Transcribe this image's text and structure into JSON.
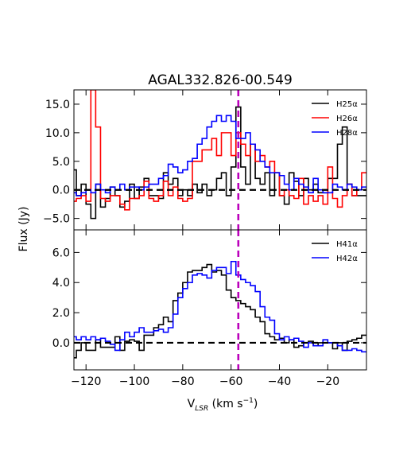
{
  "chart_data": {
    "title": "AGAL332.826-00.549",
    "xlabel": "V",
    "xlabel_sub": "LSR",
    "xlabel_units": " (km s",
    "xlabel_exp": "−1",
    "xlabel_close": ")",
    "ylabel": "Flux (Jy)",
    "xlim": [
      -125,
      -4
    ],
    "xticks": [
      -120,
      -100,
      -80,
      -60,
      -40,
      -20
    ],
    "xtick_labels": [
      "−120",
      "−100",
      "−80",
      "−60",
      "−40",
      "−20"
    ],
    "vline_x": -57,
    "vline_color": "#bb00bb",
    "zero_line_color": "#000000",
    "panels": [
      {
        "type": "line",
        "step": true,
        "ylim": [
          -7,
          17.5
        ],
        "yticks": [
          15,
          10,
          5,
          0,
          -5
        ],
        "ytick_labels": [
          "15.0",
          "10.0",
          "5.0",
          "0.0",
          "−5.0"
        ],
        "series": [
          {
            "name": "H25α",
            "color": "#000000",
            "x": [
              -125,
              -123,
              -121,
              -119,
              -117,
              -115,
              -113,
              -111,
              -109,
              -107,
              -105,
              -103,
              -101,
              -99,
              -97,
              -95,
              -93,
              -91,
              -89,
              -87,
              -85,
              -83,
              -81,
              -79,
              -77,
              -75,
              -73,
              -71,
              -69,
              -67,
              -65,
              -63,
              -61,
              -59,
              -57,
              -55,
              -53,
              -51,
              -49,
              -47,
              -45,
              -43,
              -41,
              -39,
              -37,
              -35,
              -33,
              -31,
              -29,
              -27,
              -25,
              -23,
              -21,
              -19,
              -17,
              -15,
              -13,
              -11,
              -9,
              -7,
              -5
            ],
            "y": [
              3.5,
              -1,
              1,
              -2.5,
              -5,
              1,
              -3,
              -1.5,
              0.5,
              -1,
              -3,
              -2,
              1,
              -1.5,
              0.5,
              2,
              -1,
              -1,
              -1.5,
              3,
              1,
              2,
              -1,
              0,
              -1,
              1,
              -0.5,
              1,
              -1,
              0,
              2,
              3,
              -1,
              4,
              14.5,
              4,
              1,
              8,
              2,
              1,
              3,
              -1,
              3,
              -1,
              -2.5,
              3,
              1.5,
              -1,
              2,
              0,
              1,
              -0.5,
              -0.5,
              2,
              2,
              8,
              11,
              1,
              -1,
              -1,
              -1
            ]
          },
          {
            "name": "H26α",
            "color": "#ff0000",
            "x": [
              -125,
              -123,
              -121,
              -119,
              -117,
              -115,
              -113,
              -111,
              -109,
              -107,
              -105,
              -103,
              -101,
              -99,
              -97,
              -95,
              -93,
              -91,
              -89,
              -87,
              -85,
              -83,
              -81,
              -79,
              -77,
              -75,
              -73,
              -71,
              -69,
              -67,
              -65,
              -63,
              -61,
              -59,
              -57,
              -55,
              -53,
              -51,
              -49,
              -47,
              -45,
              -43,
              -41,
              -39,
              -37,
              -35,
              -33,
              -31,
              -29,
              -27,
              -25,
              -23,
              -21,
              -19,
              -17,
              -15,
              -13,
              -11,
              -9,
              -7,
              -5
            ],
            "y": [
              -2,
              -1.5,
              -1,
              -2,
              17.5,
              11,
              -1.5,
              -2,
              -1,
              -1,
              -2.5,
              -3.5,
              -1.5,
              -1.5,
              -1,
              1.5,
              -1.5,
              -2,
              -1,
              1.5,
              -1,
              0.5,
              -1.5,
              -2,
              -1.5,
              5,
              5,
              7,
              7,
              9,
              6,
              10,
              10,
              6,
              10,
              8,
              6,
              8,
              5,
              6,
              4,
              5,
              3,
              -1,
              0,
              -1,
              -1.5,
              2,
              -2.5,
              -1,
              -2,
              -1,
              -2.5,
              4,
              -1.5,
              -3,
              -1,
              1,
              -1,
              0,
              3
            ]
          },
          {
            "name": "H28α",
            "color": "#0000ff",
            "x": [
              -125,
              -123,
              -121,
              -119,
              -117,
              -115,
              -113,
              -111,
              -109,
              -107,
              -105,
              -103,
              -101,
              -99,
              -97,
              -95,
              -93,
              -91,
              -89,
              -87,
              -85,
              -83,
              -81,
              -79,
              -77,
              -75,
              -73,
              -71,
              -69,
              -67,
              -65,
              -63,
              -61,
              -59,
              -57,
              -55,
              -53,
              -51,
              -49,
              -47,
              -45,
              -43,
              -41,
              -39,
              -37,
              -35,
              -33,
              -31,
              -29,
              -27,
              -25,
              -23,
              -21,
              -19,
              -17,
              -15,
              -13,
              -11,
              -9,
              -7,
              -5
            ],
            "y": [
              -0.5,
              -1,
              -0.5,
              0,
              -0.5,
              1,
              0,
              -0.5,
              0.5,
              0,
              1,
              0,
              0.5,
              0.5,
              0,
              0.5,
              1,
              1,
              2,
              2.5,
              4.5,
              4,
              3,
              3.5,
              5,
              5.5,
              8,
              9,
              11,
              12,
              13,
              12,
              13,
              12,
              9,
              9,
              10,
              8,
              7,
              5,
              4,
              3,
              3,
              2.5,
              1,
              0,
              2,
              1,
              0.5,
              -0.5,
              2,
              0,
              -0.5,
              -0.5,
              1,
              0.5,
              0,
              1,
              0.5,
              0,
              0.5
            ]
          }
        ]
      },
      {
        "type": "line",
        "step": true,
        "ylim": [
          -1.8,
          7.5
        ],
        "yticks": [
          6,
          4,
          2,
          0
        ],
        "ytick_labels": [
          "6.0",
          "4.0",
          "2.0",
          "0.0"
        ],
        "series": [
          {
            "name": "H41α",
            "color": "#000000",
            "x": [
              -125,
              -123,
              -121,
              -119,
              -117,
              -115,
              -113,
              -111,
              -109,
              -107,
              -105,
              -103,
              -101,
              -99,
              -97,
              -95,
              -93,
              -91,
              -89,
              -87,
              -85,
              -83,
              -81,
              -79,
              -77,
              -75,
              -73,
              -71,
              -69,
              -67,
              -65,
              -63,
              -61,
              -59,
              -57,
              -55,
              -53,
              -51,
              -49,
              -47,
              -45,
              -43,
              -41,
              -39,
              -37,
              -35,
              -33,
              -31,
              -29,
              -27,
              -25,
              -23,
              -21,
              -19,
              -17,
              -15,
              -13,
              -11,
              -9,
              -7,
              -5
            ],
            "y": [
              -1,
              -0.5,
              0,
              -0.5,
              -0.5,
              0.2,
              -0.3,
              -0.3,
              -0.3,
              0.4,
              -0.5,
              0.1,
              0.2,
              0.1,
              -0.5,
              0.5,
              0.5,
              1,
              1.2,
              1.7,
              1.4,
              2.8,
              3.3,
              4,
              4.7,
              4.8,
              4.8,
              5,
              5.2,
              4.7,
              4.8,
              4.5,
              3.5,
              3.0,
              2.8,
              2.6,
              2.4,
              2.2,
              1.7,
              1.4,
              0.6,
              0.4,
              0.2,
              0.3,
              0,
              0.2,
              -0.3,
              -0.2,
              0,
              0.1,
              -0.2,
              0,
              0,
              0,
              -0.4,
              0,
              -0.5,
              0.1,
              0.2,
              0.3,
              0.5
            ]
          },
          {
            "name": "H42α",
            "color": "#0000ff",
            "x": [
              -125,
              -123,
              -121,
              -119,
              -117,
              -115,
              -113,
              -111,
              -109,
              -107,
              -105,
              -103,
              -101,
              -99,
              -97,
              -95,
              -93,
              -91,
              -89,
              -87,
              -85,
              -83,
              -81,
              -79,
              -77,
              -75,
              -73,
              -71,
              -69,
              -67,
              -65,
              -63,
              -61,
              -59,
              -57,
              -55,
              -53,
              -51,
              -49,
              -47,
              -45,
              -43,
              -41,
              -39,
              -37,
              -35,
              -33,
              -31,
              -29,
              -27,
              -25,
              -23,
              -21,
              -19,
              -17,
              -15,
              -13,
              -11,
              -9,
              -7,
              -5
            ],
            "y": [
              0.4,
              0.2,
              0.4,
              0.2,
              0.4,
              0.2,
              0.3,
              0.1,
              -0.1,
              -0.5,
              0.2,
              0.7,
              0.4,
              0.7,
              1,
              0.7,
              0.7,
              0.8,
              0.9,
              0.7,
              1.0,
              1.9,
              3.0,
              3.6,
              4.0,
              4.5,
              4.6,
              4.5,
              4.3,
              4.8,
              5.0,
              5.0,
              4.6,
              5.4,
              4.5,
              4.2,
              4.0,
              3.8,
              3.4,
              2.4,
              1.7,
              1.5,
              0.6,
              0.2,
              0.4,
              0.2,
              0.3,
              0.1,
              -0.3,
              0,
              -0.2,
              -0.2,
              0.2,
              0,
              0,
              -0.2,
              -0.5,
              -0.5,
              -0.4,
              -0.5,
              -0.6
            ]
          }
        ]
      }
    ]
  }
}
